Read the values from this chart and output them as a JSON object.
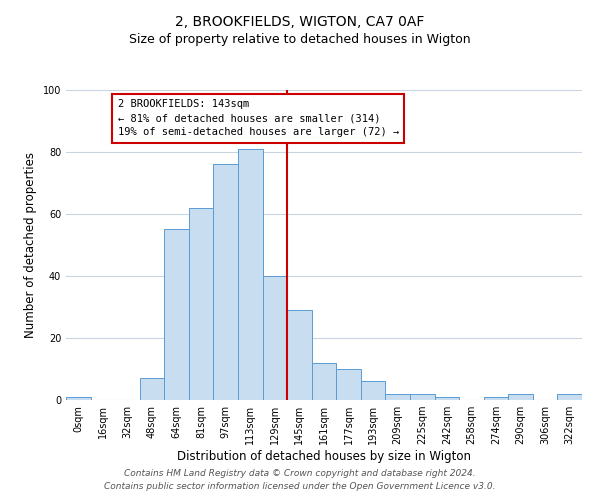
{
  "title": "2, BROOKFIELDS, WIGTON, CA7 0AF",
  "subtitle": "Size of property relative to detached houses in Wigton",
  "xlabel": "Distribution of detached houses by size in Wigton",
  "ylabel": "Number of detached properties",
  "bar_labels": [
    "0sqm",
    "16sqm",
    "32sqm",
    "48sqm",
    "64sqm",
    "81sqm",
    "97sqm",
    "113sqm",
    "129sqm",
    "145sqm",
    "161sqm",
    "177sqm",
    "193sqm",
    "209sqm",
    "225sqm",
    "242sqm",
    "258sqm",
    "274sqm",
    "290sqm",
    "306sqm",
    "322sqm"
  ],
  "bar_values": [
    1,
    0,
    0,
    7,
    55,
    62,
    76,
    81,
    40,
    29,
    12,
    10,
    6,
    2,
    2,
    1,
    0,
    1,
    2,
    0,
    2
  ],
  "bar_color": "#c9ddf0",
  "bar_edge_color": "#5b9bd5",
  "marker_line_color": "#cc0000",
  "ylim": [
    0,
    100
  ],
  "annotation_box_text": [
    "2 BROOKFIELDS: 143sqm",
    "← 81% of detached houses are smaller (314)",
    "19% of semi-detached houses are larger (72) →"
  ],
  "annotation_box_color": "#ffffff",
  "annotation_box_edge_color": "#cc0000",
  "footer_lines": [
    "Contains HM Land Registry data © Crown copyright and database right 2024.",
    "Contains public sector information licensed under the Open Government Licence v3.0."
  ],
  "background_color": "#ffffff",
  "grid_color": "#c8d4e0",
  "title_fontsize": 10,
  "subtitle_fontsize": 9,
  "axis_label_fontsize": 8.5,
  "tick_fontsize": 7,
  "annotation_fontsize": 7.5,
  "footer_fontsize": 6.5
}
